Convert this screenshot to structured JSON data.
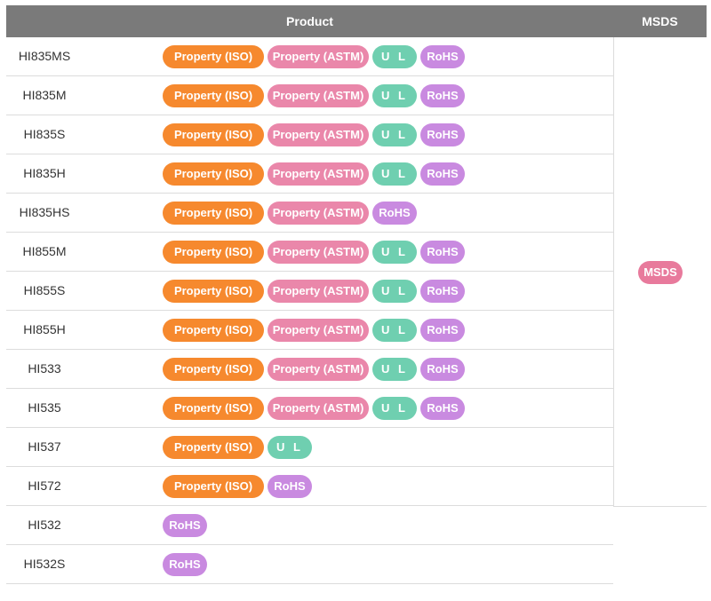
{
  "header": {
    "product": "Product",
    "msds": "MSDS"
  },
  "msds_button": "MSDS",
  "badge_labels": {
    "iso": "Property (ISO)",
    "astm": "Property (ASTM)",
    "ul": "U L",
    "rohs": "RoHS"
  },
  "colors": {
    "header_bg": "#7a7a7a",
    "iso": "#f6892e",
    "astm": "#ea87aa",
    "ul": "#6fcfb0",
    "rohs": "#c98ae0",
    "msds": "#e87a9c"
  },
  "products": [
    {
      "name": "HI835MS",
      "badges": [
        "iso",
        "astm",
        "ul",
        "rohs"
      ]
    },
    {
      "name": "HI835M",
      "badges": [
        "iso",
        "astm",
        "ul",
        "rohs"
      ]
    },
    {
      "name": "HI835S",
      "badges": [
        "iso",
        "astm",
        "ul",
        "rohs"
      ]
    },
    {
      "name": "HI835H",
      "badges": [
        "iso",
        "astm",
        "ul",
        "rohs"
      ]
    },
    {
      "name": "HI835HS",
      "badges": [
        "iso",
        "astm",
        "rohs"
      ]
    },
    {
      "name": "HI855M",
      "badges": [
        "iso",
        "astm",
        "ul",
        "rohs"
      ]
    },
    {
      "name": "HI855S",
      "badges": [
        "iso",
        "astm",
        "ul",
        "rohs"
      ]
    },
    {
      "name": "HI855H",
      "badges": [
        "iso",
        "astm",
        "ul",
        "rohs"
      ]
    },
    {
      "name": "HI533",
      "badges": [
        "iso",
        "astm",
        "ul",
        "rohs"
      ]
    },
    {
      "name": "HI535",
      "badges": [
        "iso",
        "astm",
        "ul",
        "rohs"
      ]
    },
    {
      "name": "HI537",
      "badges": [
        "iso",
        "ul"
      ]
    },
    {
      "name": "HI572",
      "badges": [
        "iso",
        "rohs"
      ]
    },
    {
      "name": "HI532",
      "badges": [
        "rohs"
      ]
    },
    {
      "name": "HI532S",
      "badges": [
        "rohs"
      ]
    }
  ]
}
